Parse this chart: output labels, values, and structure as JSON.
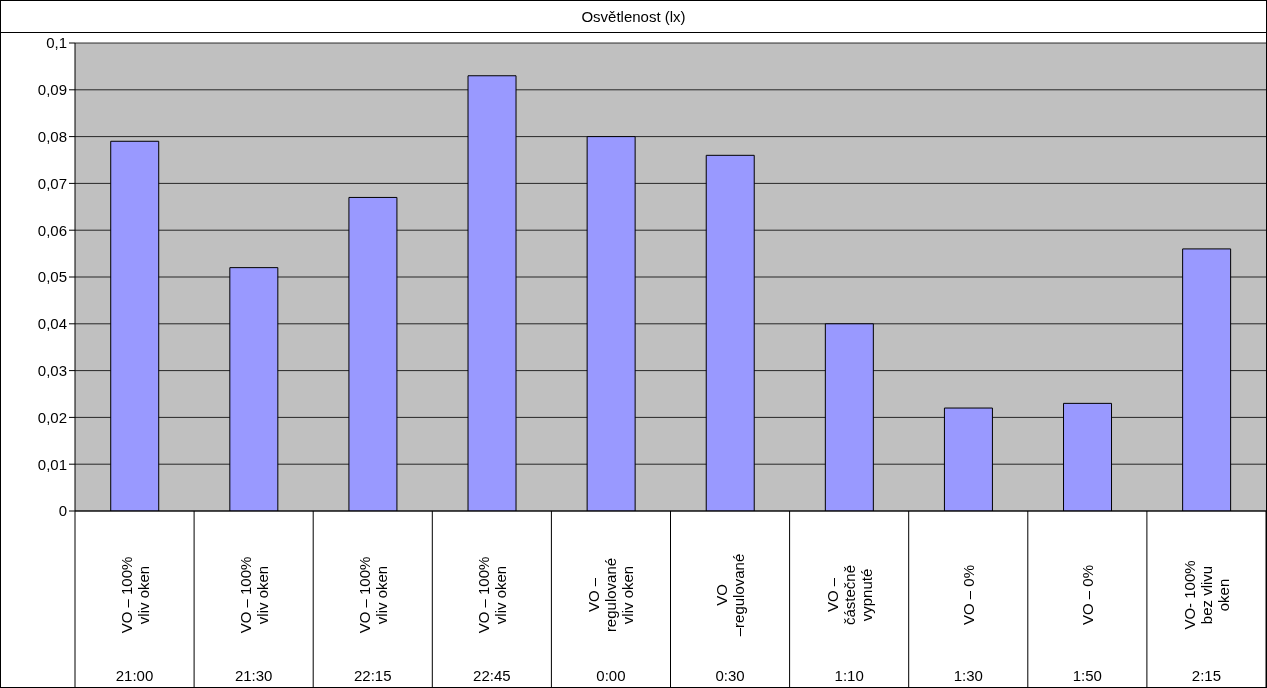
{
  "chart_data": {
    "type": "bar",
    "title": "Osvětlenost (lx)",
    "categories": [
      "VO – 100%\nvliv oken\n21:00",
      "VO – 100%\nvliv oken\n21:30",
      "VO – 100%\nvliv oken\n22:15",
      "VO – 100%\nvliv oken\n22:45",
      "VO –\nregulované\nvliv oken\n0:00",
      "VO\n–regulované\n0:30",
      "VO –\nčástečně\nvypnuté\n1:10",
      "VO – 0%\n1:30",
      "VO – 0%\n1:50",
      "VO- 100%\nbez vlivu\noken\n2:15"
    ],
    "values": [
      0.079,
      0.052,
      0.067,
      0.093,
      0.08,
      0.076,
      0.04,
      0.022,
      0.023,
      0.056
    ],
    "color": "#9999ff",
    "ylim": [
      0,
      0.1
    ],
    "yticks": [
      {
        "value": 0,
        "label": "0"
      },
      {
        "value": 0.01,
        "label": "0,01"
      },
      {
        "value": 0.02,
        "label": "0,02"
      },
      {
        "value": 0.03,
        "label": "0,03"
      },
      {
        "value": 0.04,
        "label": "0,04"
      },
      {
        "value": 0.05,
        "label": "0,05"
      },
      {
        "value": 0.06,
        "label": "0,06"
      },
      {
        "value": 0.07,
        "label": "0,07"
      },
      {
        "value": 0.08,
        "label": "0,08"
      },
      {
        "value": 0.09,
        "label": "0,09"
      },
      {
        "value": 0.1,
        "label": "0,1"
      }
    ],
    "grid": "y"
  }
}
